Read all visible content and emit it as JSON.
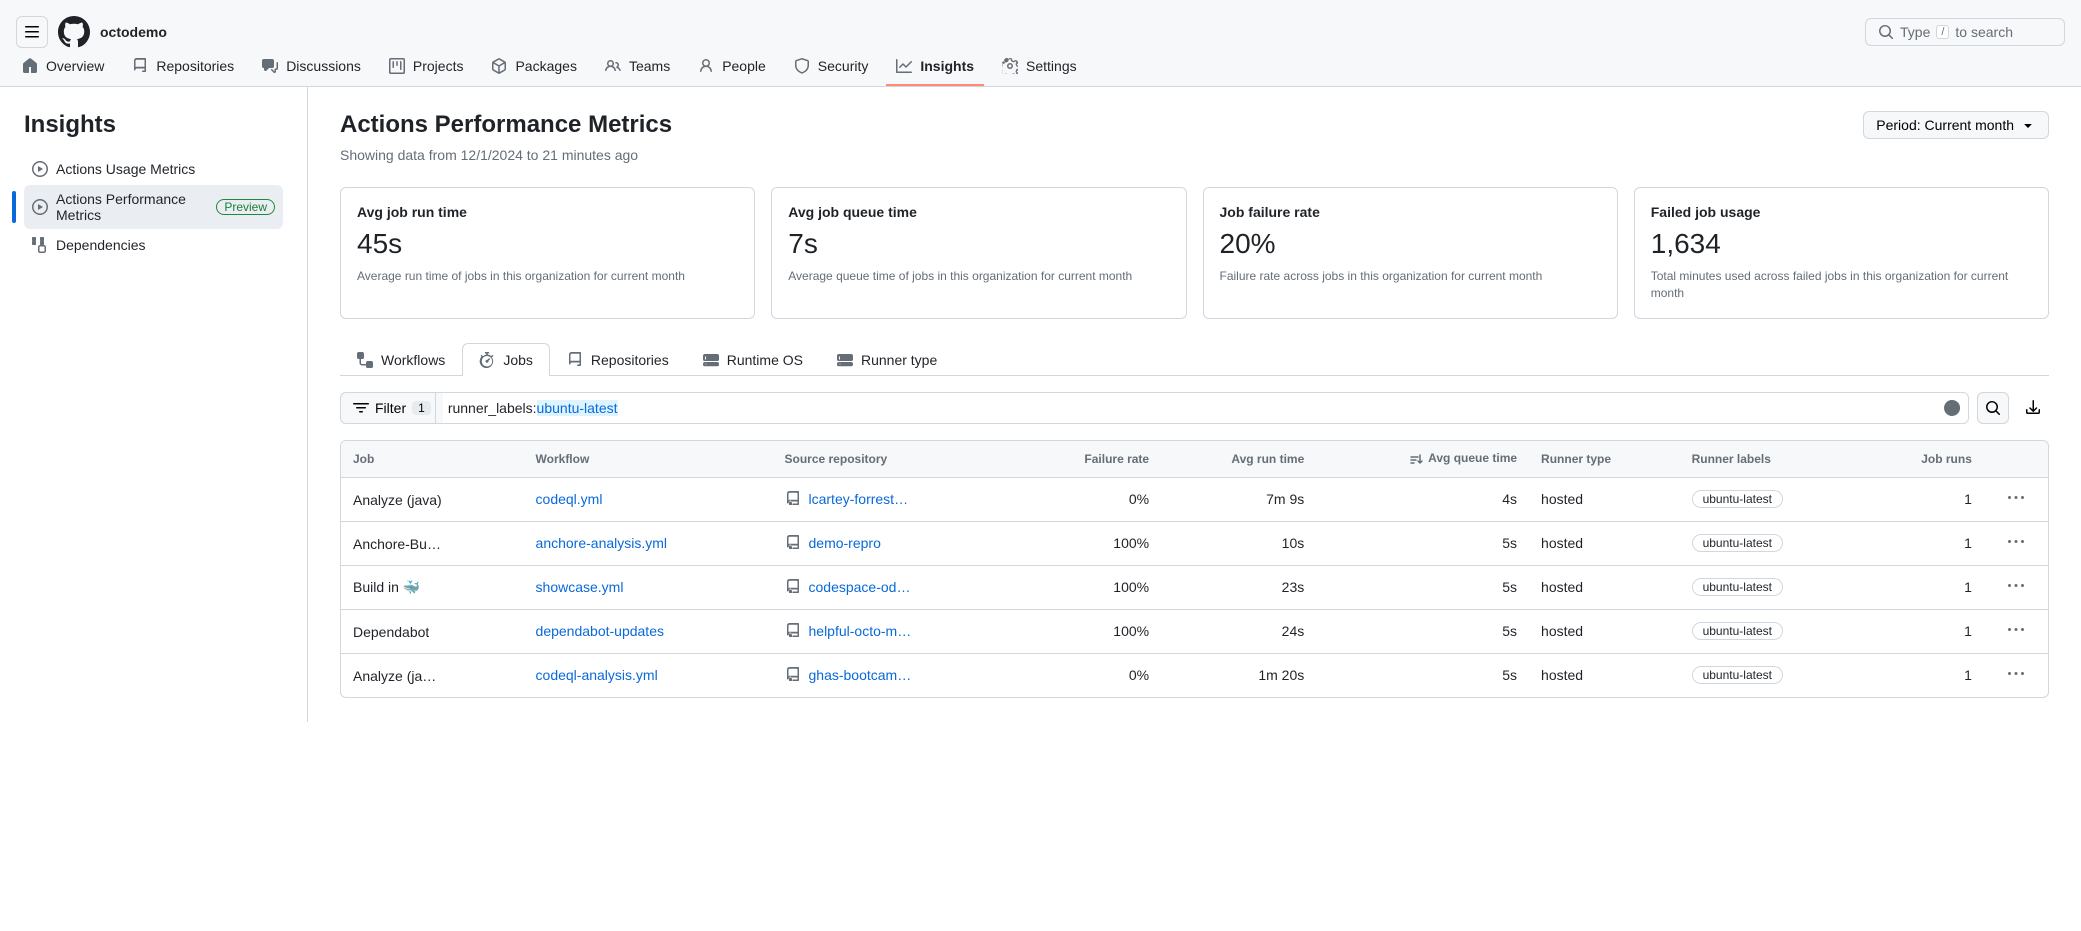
{
  "header": {
    "org": "octodemo",
    "search_prefix": "Type ",
    "search_key": "/",
    "search_suffix": " to search"
  },
  "nav": [
    {
      "label": "Overview",
      "icon": "home"
    },
    {
      "label": "Repositories",
      "icon": "repo"
    },
    {
      "label": "Discussions",
      "icon": "discussion"
    },
    {
      "label": "Projects",
      "icon": "project"
    },
    {
      "label": "Packages",
      "icon": "package"
    },
    {
      "label": "Teams",
      "icon": "people"
    },
    {
      "label": "People",
      "icon": "person"
    },
    {
      "label": "Security",
      "icon": "shield"
    },
    {
      "label": "Insights",
      "icon": "graph",
      "active": true
    },
    {
      "label": "Settings",
      "icon": "gear"
    }
  ],
  "sidebar": {
    "title": "Insights",
    "items": [
      {
        "label": "Actions Usage Metrics"
      },
      {
        "label": "Actions Performance Metrics",
        "preview": "Preview",
        "active": true
      },
      {
        "label": "Dependencies"
      }
    ]
  },
  "page": {
    "title": "Actions Performance Metrics",
    "subtitle": "Showing data from 12/1/2024 to 21 minutes ago",
    "period_btn": "Period: Current month"
  },
  "cards": [
    {
      "title": "Avg job run time",
      "value": "45s",
      "desc": "Average run time of jobs in this organization for current month"
    },
    {
      "title": "Avg job queue time",
      "value": "7s",
      "desc": "Average queue time of jobs in this organization for current month"
    },
    {
      "title": "Job failure rate",
      "value": "20%",
      "desc": "Failure rate across jobs in this organization for current month"
    },
    {
      "title": "Failed job usage",
      "value": "1,634",
      "desc": "Total minutes used across failed jobs in this organization for current month"
    }
  ],
  "subtabs": [
    {
      "label": "Workflows"
    },
    {
      "label": "Jobs",
      "active": true
    },
    {
      "label": "Repositories"
    },
    {
      "label": "Runtime OS"
    },
    {
      "label": "Runner type"
    }
  ],
  "filter": {
    "label": "Filter",
    "count": "1",
    "key": "runner_labels:",
    "value": "ubuntu-latest"
  },
  "table": {
    "columns": [
      "Job",
      "Workflow",
      "Source repository",
      "Failure rate",
      "Avg run time",
      "Avg queue time",
      "Runner type",
      "Runner labels",
      "Job runs"
    ],
    "sorted_col": "Avg queue time",
    "rows": [
      {
        "job": "Analyze (java)",
        "workflow": "codeql.yml",
        "repo": "lcartey-forreste…",
        "failure": "0%",
        "run": "7m 9s",
        "queue": "4s",
        "runner_type": "hosted",
        "label": "ubuntu-latest",
        "runs": "1"
      },
      {
        "job": "Anchore-Build…",
        "workflow": "anchore-analysis.yml",
        "repo": "demo-repro",
        "failure": "100%",
        "run": "10s",
        "queue": "5s",
        "runner_type": "hosted",
        "label": "ubuntu-latest",
        "runs": "1"
      },
      {
        "job": "Build in 🐳",
        "workflow": "showcase.yml",
        "repo": "codespace-od…",
        "failure": "100%",
        "run": "23s",
        "queue": "5s",
        "runner_type": "hosted",
        "label": "ubuntu-latest",
        "runs": "1"
      },
      {
        "job": "Dependabot",
        "workflow": "dependabot-updates",
        "repo": "helpful-octo-m…",
        "failure": "100%",
        "run": "24s",
        "queue": "5s",
        "runner_type": "hosted",
        "label": "ubuntu-latest",
        "runs": "1"
      },
      {
        "job": "Analyze (javas…",
        "workflow": "codeql-analysis.yml",
        "repo": "ghas-bootcam…",
        "failure": "0%",
        "run": "1m 20s",
        "queue": "5s",
        "runner_type": "hosted",
        "label": "ubuntu-latest",
        "runs": "1"
      }
    ]
  }
}
